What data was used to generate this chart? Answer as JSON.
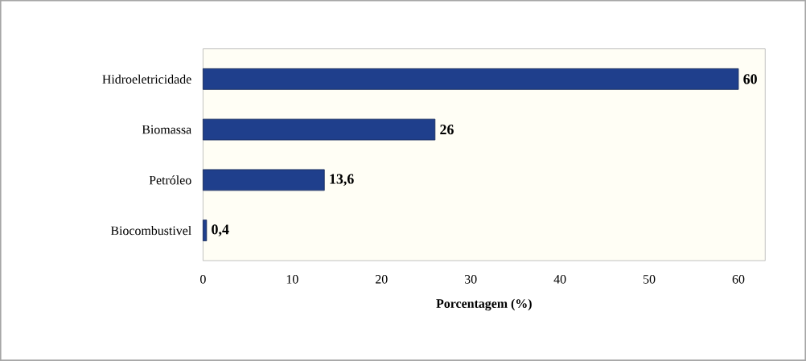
{
  "chart_data": {
    "type": "bar",
    "orientation": "horizontal",
    "xlabel": "Porcentagem (%)",
    "categories": [
      "Hidroeletricidade",
      "Biomassa",
      "Petróleo",
      "Biocombustivel"
    ],
    "values": [
      60,
      26,
      13.6,
      0.4
    ],
    "value_labels": [
      "60",
      "26",
      "13,6",
      "0,4"
    ],
    "color": "#1f3f8c",
    "xlim": [
      0,
      63
    ],
    "xticks": [
      0,
      10,
      20,
      30,
      40,
      50,
      60
    ]
  }
}
